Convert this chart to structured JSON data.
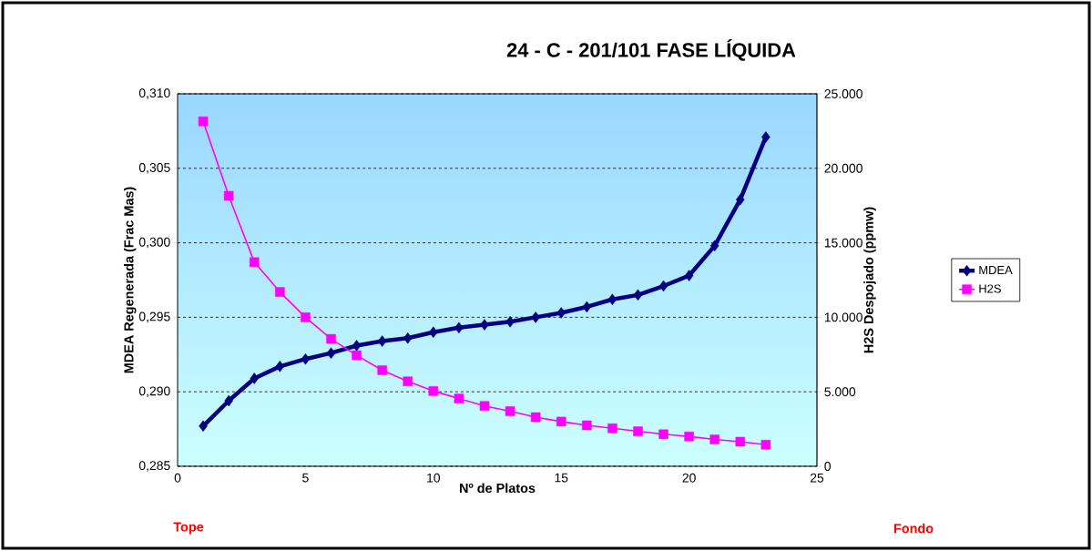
{
  "chart_data": {
    "type": "line",
    "title": "24 - C - 201/101      FASE LÍQUIDA",
    "xlabel": "Nº de Platos",
    "ylabel": "MDEA Regenerada (Frac Mas)",
    "y2label": "H2S Despojado (ppmw)",
    "x": [
      1,
      2,
      3,
      4,
      5,
      6,
      7,
      8,
      9,
      10,
      11,
      12,
      13,
      14,
      15,
      16,
      17,
      18,
      19,
      20,
      21,
      22,
      23
    ],
    "series": [
      {
        "name": "MDEA",
        "color": "#000080",
        "marker": "diamond",
        "values": [
          0.2877,
          0.2894,
          0.2909,
          0.2917,
          0.2922,
          0.2926,
          0.2931,
          0.2934,
          0.2936,
          0.294,
          0.2943,
          0.2945,
          0.2947,
          0.295,
          0.2953,
          0.2957,
          0.2962,
          0.2965,
          0.2971,
          0.2978,
          0.2998,
          0.3029,
          0.3071
        ]
      },
      {
        "name": "H2S",
        "color": "#ff00ff",
        "marker": "square",
        "axis": "y2",
        "values": [
          23150,
          18150,
          13700,
          11700,
          10000,
          8550,
          7450,
          6450,
          5700,
          5050,
          4550,
          4050,
          3700,
          3300,
          3000,
          2750,
          2550,
          2350,
          2150,
          2000,
          1800,
          1650,
          1450
        ]
      }
    ],
    "xlim": [
      0,
      25
    ],
    "xticks": [
      0,
      5,
      10,
      15,
      20,
      25
    ],
    "ylim": [
      0.285,
      0.31
    ],
    "yticks": [
      {
        "value": 0.285,
        "label": "0,285"
      },
      {
        "value": 0.29,
        "label": "0,290"
      },
      {
        "value": 0.295,
        "label": "0,295"
      },
      {
        "value": 0.3,
        "label": "0,300"
      },
      {
        "value": 0.305,
        "label": "0,305"
      },
      {
        "value": 0.31,
        "label": "0,310"
      }
    ],
    "y2lim": [
      0,
      25000
    ],
    "y2ticks": [
      0,
      {
        "value": 5000,
        "label": "5.000"
      },
      {
        "value": 10000,
        "label": "10.000"
      },
      {
        "value": 15000,
        "label": "15.000"
      },
      {
        "value": 20000,
        "label": "20.000"
      },
      {
        "value": 25000,
        "label": "25.000"
      }
    ],
    "grid": "y",
    "legend": "right",
    "annotations": [
      "Tope",
      "Fondo"
    ]
  }
}
